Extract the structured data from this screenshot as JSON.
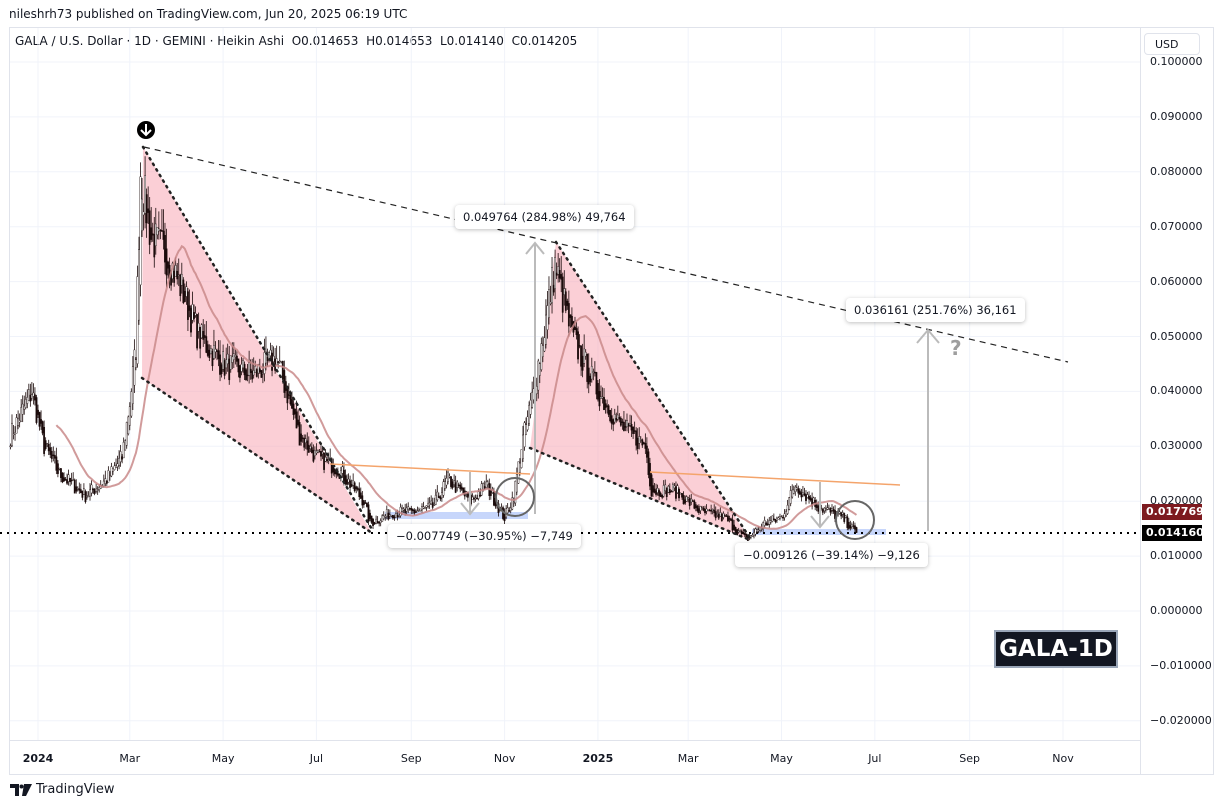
{
  "header": {
    "published": "nileshrh73 published on TradingView.com, Jun 20, 2025 06:19 UTC"
  },
  "legend": {
    "symbol": "GALA / U.S. Dollar · 1D · GEMINI · Heikin Ashi",
    "open": "O0.014653",
    "high": "H0.014653",
    "low": "L0.014140",
    "close": "C0.014205"
  },
  "currency_button": "USD",
  "price_labels": {
    "ma": {
      "value": "0.017769",
      "color": "#7d1a1f"
    },
    "last": {
      "value": "0.014160",
      "color": "#000000"
    }
  },
  "annotations": {
    "rise1": "0.049764 (284.98%) 49,764",
    "rise2": "0.036161 (251.76%) 36,161",
    "drop1": "−0.007749 (−30.95%) −7,749",
    "drop2": "−0.009126 (−39.14%) −9,126",
    "question": "?"
  },
  "badge": "GALA-1D",
  "footer": {
    "logo": "TradingView"
  },
  "chart_data": {
    "type": "candlestick",
    "style": "Heikin Ashi",
    "interval": "1D",
    "grid": true,
    "y_ticks": [
      "0.100000",
      "0.090000",
      "0.080000",
      "0.070000",
      "0.060000",
      "0.050000",
      "0.040000",
      "0.030000",
      "0.020000",
      "0.010000",
      "0.000000",
      "−0.010000",
      "−0.020000"
    ],
    "ylim": [
      -0.023,
      0.103
    ],
    "x_ticks": [
      {
        "label": "2024",
        "date": "2024-01-01",
        "year": true
      },
      {
        "label": "Mar",
        "date": "2024-03-01"
      },
      {
        "label": "May",
        "date": "2024-05-01"
      },
      {
        "label": "Jul",
        "date": "2024-07-01"
      },
      {
        "label": "Sep",
        "date": "2024-09-01"
      },
      {
        "label": "Nov",
        "date": "2024-11-01"
      },
      {
        "label": "2025",
        "date": "2025-01-01",
        "year": true
      },
      {
        "label": "Mar",
        "date": "2025-03-01"
      },
      {
        "label": "May",
        "date": "2025-05-01"
      },
      {
        "label": "Jul",
        "date": "2025-07-01"
      },
      {
        "label": "Sep",
        "date": "2025-09-01"
      },
      {
        "label": "Nov",
        "date": "2025-11-01"
      }
    ],
    "approx_close": [
      [
        "2023-12-14",
        0.032
      ],
      [
        "2023-12-28",
        0.04
      ],
      [
        "2024-01-05",
        0.03
      ],
      [
        "2024-01-15",
        0.025
      ],
      [
        "2024-02-01",
        0.021
      ],
      [
        "2024-02-15",
        0.024
      ],
      [
        "2024-02-25",
        0.028
      ],
      [
        "2024-03-01",
        0.038
      ],
      [
        "2024-03-05",
        0.048
      ],
      [
        "2024-03-08",
        0.08
      ],
      [
        "2024-03-15",
        0.068
      ],
      [
        "2024-03-25",
        0.065
      ],
      [
        "2024-04-05",
        0.058
      ],
      [
        "2024-04-15",
        0.05
      ],
      [
        "2024-05-01",
        0.045
      ],
      [
        "2024-05-20",
        0.043
      ],
      [
        "2024-06-05",
        0.046
      ],
      [
        "2024-06-20",
        0.032
      ],
      [
        "2024-07-01",
        0.028
      ],
      [
        "2024-07-15",
        0.026
      ],
      [
        "2024-08-01",
        0.02
      ],
      [
        "2024-08-05",
        0.016
      ],
      [
        "2024-08-20",
        0.018
      ],
      [
        "2024-09-01",
        0.018
      ],
      [
        "2024-09-15",
        0.019
      ],
      [
        "2024-09-25",
        0.024
      ],
      [
        "2024-10-10",
        0.02
      ],
      [
        "2024-10-20",
        0.023
      ],
      [
        "2024-11-01",
        0.017
      ],
      [
        "2024-11-07",
        0.021
      ],
      [
        "2024-11-12",
        0.03
      ],
      [
        "2024-11-20",
        0.04
      ],
      [
        "2024-12-04",
        0.063
      ],
      [
        "2024-12-15",
        0.05
      ],
      [
        "2025-01-01",
        0.04
      ],
      [
        "2025-01-15",
        0.034
      ],
      [
        "2025-02-01",
        0.03
      ],
      [
        "2025-02-05",
        0.022
      ],
      [
        "2025-02-20",
        0.022
      ],
      [
        "2025-03-10",
        0.018
      ],
      [
        "2025-03-25",
        0.017
      ],
      [
        "2025-04-08",
        0.013
      ],
      [
        "2025-04-20",
        0.016
      ],
      [
        "2025-05-01",
        0.017
      ],
      [
        "2025-05-10",
        0.023
      ],
      [
        "2025-05-25",
        0.019
      ],
      [
        "2025-06-10",
        0.017
      ],
      [
        "2025-06-19",
        0.0142
      ]
    ],
    "moving_average_last": 0.017769,
    "last_price": 0.01416,
    "colors": {
      "wedge_fill": "#f7a8b4",
      "ma": "#c98a8a",
      "trendline": "#f4a46b",
      "band": "#c7d6fb",
      "candle": "#000000"
    }
  }
}
